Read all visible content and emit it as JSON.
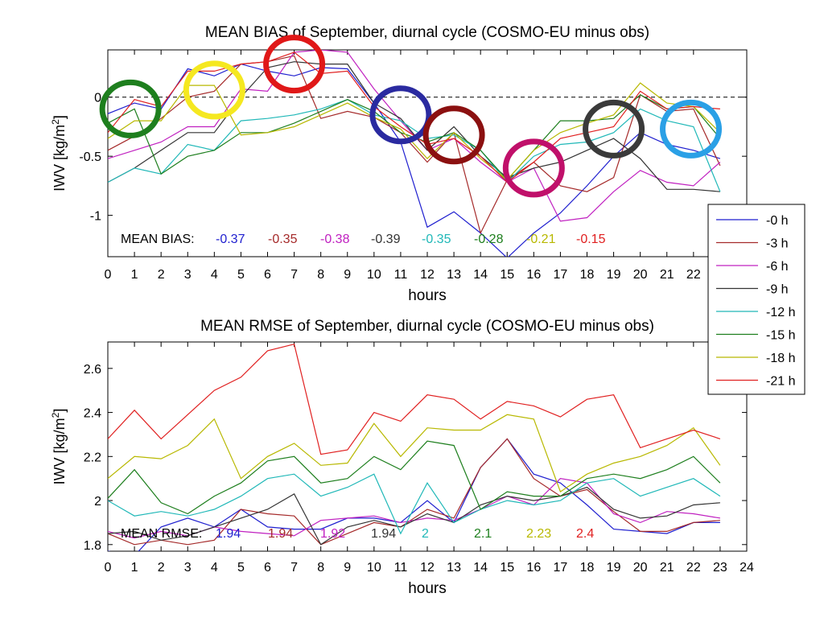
{
  "chart_data": [
    {
      "type": "line",
      "title": "MEAN BIAS of September, diurnal cycle (COSMO-EU minus obs)",
      "xlabel": "hours",
      "ylabel_main": "IWV [kg/m",
      "ylabel_sup": "2",
      "ylabel_close": "]",
      "xlim": [
        0,
        24
      ],
      "ylim": [
        -1.35,
        0.4
      ],
      "xticks": [
        "0",
        "1",
        "2",
        "3",
        "4",
        "5",
        "6",
        "7",
        "8",
        "9",
        "10",
        "11",
        "12",
        "13",
        "14",
        "15",
        "16",
        "17",
        "18",
        "19",
        "20",
        "21",
        "22"
      ],
      "yticks": [
        {
          "v": 0,
          "label": "0"
        },
        {
          "v": -0.5,
          "label": "-0.5"
        },
        {
          "v": -1,
          "label": "-1"
        }
      ],
      "zero_line": true,
      "mean_label": "MEAN BIAS:",
      "x": [
        0,
        1,
        2,
        3,
        4,
        5,
        6,
        7,
        8,
        9,
        10,
        11,
        12,
        13,
        14,
        15,
        16,
        17,
        18,
        19,
        20,
        21,
        22,
        23
      ],
      "series": [
        {
          "name": "-0 h",
          "color": "#1f1fcf",
          "mean": "-0.37",
          "values": [
            -0.14,
            -0.05,
            -0.1,
            0.24,
            0.18,
            0.28,
            0.22,
            0.18,
            0.25,
            0.24,
            -0.05,
            -0.38,
            -1.1,
            -0.97,
            -1.15,
            -1.36,
            -1.15,
            -0.98,
            -0.75,
            -0.5,
            -0.3,
            -0.4,
            -0.45,
            -0.52
          ]
        },
        {
          "name": "-3 h",
          "color": "#a52a2a",
          "mean": "-0.35",
          "values": [
            -0.45,
            -0.33,
            -0.18,
            0.0,
            0.05,
            0.28,
            0.3,
            0.35,
            -0.18,
            -0.12,
            -0.17,
            -0.3,
            -0.55,
            -0.3,
            -1.15,
            -0.7,
            -0.55,
            -0.75,
            -0.8,
            -0.68,
            0.02,
            -0.12,
            -0.1,
            -0.58
          ]
        },
        {
          "name": "-6 h",
          "color": "#c020c0",
          "mean": "-0.38",
          "values": [
            -0.52,
            -0.45,
            -0.38,
            -0.25,
            -0.25,
            0.07,
            0.05,
            0.38,
            0.4,
            0.38,
            0.07,
            -0.2,
            -0.45,
            -0.35,
            -0.55,
            -0.72,
            -0.6,
            -1.05,
            -1.02,
            -0.8,
            -0.62,
            -0.72,
            -0.75,
            -0.55
          ]
        },
        {
          "name": "-9 h",
          "color": "#333333",
          "mean": "-0.39",
          "values": [
            -0.72,
            -0.6,
            -0.45,
            -0.3,
            -0.3,
            0.0,
            0.25,
            0.3,
            0.28,
            0.28,
            -0.05,
            -0.18,
            -0.45,
            -0.25,
            -0.5,
            -0.68,
            -0.6,
            -0.55,
            -0.45,
            -0.35,
            -0.52,
            -0.78,
            -0.78,
            -0.8
          ]
        },
        {
          "name": "-12 h",
          "color": "#20b8b8",
          "mean": "-0.35",
          "values": [
            -0.72,
            -0.6,
            -0.65,
            -0.4,
            -0.45,
            -0.2,
            -0.18,
            -0.15,
            -0.1,
            -0.02,
            -0.15,
            -0.2,
            -0.35,
            -0.32,
            -0.45,
            -0.72,
            -0.5,
            -0.4,
            -0.38,
            -0.3,
            -0.1,
            -0.2,
            -0.25,
            -0.8
          ]
        },
        {
          "name": "-15 h",
          "color": "#1e7f1e",
          "mean": "-0.28",
          "values": [
            -0.22,
            -0.1,
            -0.65,
            -0.5,
            -0.45,
            -0.3,
            -0.3,
            -0.22,
            -0.12,
            -0.02,
            -0.12,
            -0.3,
            -0.38,
            -0.3,
            -0.45,
            -0.7,
            -0.45,
            -0.2,
            -0.2,
            -0.18,
            0.02,
            -0.1,
            -0.08,
            -0.35
          ]
        },
        {
          "name": "-18 h",
          "color": "#b8b800",
          "mean": "-0.21",
          "values": [
            -0.35,
            -0.2,
            -0.2,
            0.1,
            0.1,
            -0.32,
            -0.3,
            -0.25,
            -0.15,
            -0.05,
            -0.17,
            -0.27,
            -0.52,
            -0.3,
            -0.52,
            -0.7,
            -0.45,
            -0.3,
            -0.22,
            -0.15,
            0.12,
            -0.05,
            -0.08,
            -0.3
          ]
        },
        {
          "name": "-21 h",
          "color": "#e02020",
          "mean": "-0.15",
          "values": [
            -0.3,
            -0.02,
            -0.08,
            0.22,
            0.22,
            0.28,
            0.3,
            0.38,
            0.2,
            0.22,
            -0.08,
            -0.25,
            -0.4,
            -0.35,
            -0.5,
            -0.72,
            -0.55,
            -0.35,
            -0.3,
            -0.25,
            0.05,
            -0.1,
            -0.08,
            -0.1
          ]
        }
      ],
      "annotation_circles": [
        {
          "x": 0.85,
          "y": -0.1,
          "color": "#1e7f1e"
        },
        {
          "x": 4.0,
          "y": 0.06,
          "color": "#f5e820"
        },
        {
          "x": 7.0,
          "y": 0.28,
          "color": "#e01818"
        },
        {
          "x": 11.0,
          "y": -0.15,
          "color": "#2a2aa0"
        },
        {
          "x": 13.0,
          "y": -0.32,
          "color": "#8b1010"
        },
        {
          "x": 16.0,
          "y": -0.6,
          "color": "#c0106a"
        },
        {
          "x": 19.0,
          "y": -0.27,
          "color": "#3a3a3a"
        },
        {
          "x": 21.9,
          "y": -0.27,
          "color": "#2aa0e6"
        }
      ]
    },
    {
      "type": "line",
      "title": "MEAN RMSE of September, diurnal cycle (COSMO-EU minus obs)",
      "xlabel": "hours",
      "ylabel_main": "IWV [kg/m",
      "ylabel_sup": "2",
      "ylabel_close": "]",
      "xlim": [
        0,
        24
      ],
      "ylim": [
        1.77,
        2.72
      ],
      "xticks": [
        "0",
        "1",
        "2",
        "3",
        "4",
        "5",
        "6",
        "7",
        "8",
        "9",
        "10",
        "11",
        "12",
        "13",
        "14",
        "15",
        "16",
        "17",
        "18",
        "19",
        "20",
        "21",
        "22",
        "23",
        "24"
      ],
      "yticks": [
        {
          "v": 2.6,
          "label": "2.6"
        },
        {
          "v": 2.4,
          "label": "2.4"
        },
        {
          "v": 2.2,
          "label": "2.2"
        },
        {
          "v": 2.0,
          "label": "2"
        },
        {
          "v": 1.8,
          "label": "1.8"
        }
      ],
      "zero_line": false,
      "mean_label": "MEAN RMSE:",
      "x": [
        0,
        1,
        2,
        3,
        4,
        5,
        6,
        7,
        8,
        9,
        10,
        11,
        12,
        13,
        14,
        15,
        16,
        17,
        18,
        19,
        20,
        21,
        22,
        23
      ],
      "series": [
        {
          "name": "-0 h",
          "color": "#1f1fcf",
          "mean": "1.94",
          "values": [
            1.77,
            1.75,
            1.88,
            1.92,
            1.88,
            1.96,
            1.88,
            1.87,
            1.87,
            1.92,
            1.92,
            1.9,
            2.0,
            1.9,
            2.15,
            2.28,
            2.12,
            2.08,
            1.98,
            1.87,
            1.86,
            1.85,
            1.9,
            1.9
          ]
        },
        {
          "name": "-3 h",
          "color": "#a52a2a",
          "mean": "1.94",
          "values": [
            1.85,
            1.8,
            1.82,
            1.8,
            1.82,
            1.96,
            1.94,
            1.93,
            1.8,
            1.85,
            1.9,
            1.88,
            1.96,
            1.92,
            2.15,
            2.28,
            2.1,
            2.02,
            2.05,
            1.95,
            1.86,
            1.86,
            1.9,
            1.91
          ]
        },
        {
          "name": "-6 h",
          "color": "#c020c0",
          "mean": "1.92",
          "values": [
            1.86,
            1.83,
            1.86,
            1.84,
            1.88,
            1.86,
            1.85,
            1.84,
            1.91,
            1.92,
            1.93,
            1.9,
            1.92,
            1.91,
            1.96,
            2.02,
            1.98,
            2.1,
            2.08,
            1.94,
            1.9,
            1.95,
            1.94,
            1.92
          ]
        },
        {
          "name": "-9 h",
          "color": "#333333",
          "mean": "1.94",
          "values": [
            1.85,
            1.86,
            1.82,
            1.84,
            1.88,
            1.92,
            1.96,
            2.03,
            1.8,
            1.88,
            1.91,
            1.88,
            1.94,
            1.9,
            1.98,
            2.02,
            2.0,
            2.02,
            2.06,
            1.96,
            1.92,
            1.93,
            1.98,
            1.99
          ]
        },
        {
          "name": "-12 h",
          "color": "#20b8b8",
          "mean": "2",
          "values": [
            2.0,
            1.93,
            1.95,
            1.93,
            1.96,
            2.02,
            2.1,
            2.12,
            2.02,
            2.06,
            2.12,
            1.85,
            2.08,
            1.9,
            1.96,
            2.0,
            1.98,
            2.0,
            2.08,
            2.1,
            2.02,
            2.06,
            2.1,
            2.02
          ]
        },
        {
          "name": "-15 h",
          "color": "#1e7f1e",
          "mean": "2.1",
          "values": [
            2.01,
            2.14,
            1.99,
            1.94,
            2.02,
            2.08,
            2.18,
            2.2,
            2.08,
            2.1,
            2.2,
            2.14,
            2.27,
            2.25,
            1.96,
            2.04,
            2.02,
            2.02,
            2.1,
            2.12,
            2.1,
            2.14,
            2.2,
            2.08
          ]
        },
        {
          "name": "-18 h",
          "color": "#b8b800",
          "mean": "2.23",
          "values": [
            2.1,
            2.2,
            2.19,
            2.25,
            2.37,
            2.1,
            2.2,
            2.26,
            2.16,
            2.17,
            2.35,
            2.2,
            2.33,
            2.32,
            2.32,
            2.39,
            2.37,
            2.04,
            2.12,
            2.17,
            2.2,
            2.25,
            2.33,
            2.16
          ]
        },
        {
          "name": "-21 h",
          "color": "#e02020",
          "mean": "2.4",
          "values": [
            2.28,
            2.41,
            2.28,
            2.39,
            2.5,
            2.56,
            2.68,
            2.71,
            2.21,
            2.23,
            2.4,
            2.36,
            2.48,
            2.46,
            2.37,
            2.45,
            2.43,
            2.38,
            2.46,
            2.48,
            2.24,
            2.28,
            2.32,
            2.28
          ]
        }
      ]
    }
  ],
  "legend": {
    "placement": "right",
    "entries": [
      "-0 h",
      "-3 h",
      "-6 h",
      "-9 h",
      "-12 h",
      "-15 h",
      "-18 h",
      "-21 h"
    ]
  }
}
